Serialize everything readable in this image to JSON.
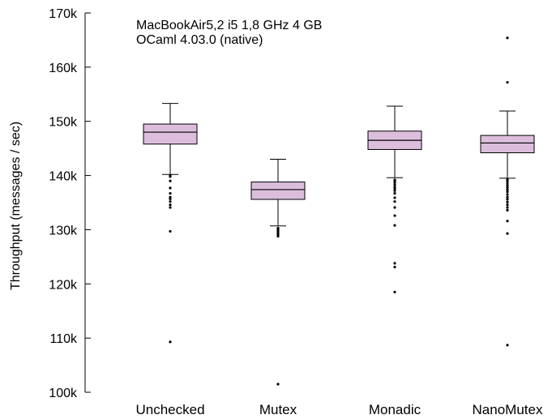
{
  "chart_data": {
    "type": "box",
    "ylabel": "Throughput (messages / sec)",
    "annotations": [
      "MacBookAir5,2 i5 1,8 GHz 4 GB",
      "OCaml 4.03.0 (native)"
    ],
    "ylim": [
      100000,
      170000
    ],
    "yticks": [
      {
        "value": 100000,
        "label": "100k"
      },
      {
        "value": 110000,
        "label": "110k"
      },
      {
        "value": 120000,
        "label": "120k"
      },
      {
        "value": 130000,
        "label": "130k"
      },
      {
        "value": 140000,
        "label": "140k"
      },
      {
        "value": 150000,
        "label": "150k"
      },
      {
        "value": 160000,
        "label": "160k"
      },
      {
        "value": 170000,
        "label": "170k"
      }
    ],
    "box_color": "#dcbedc",
    "categories": [
      "Unchecked",
      "Mutex",
      "Monadic",
      "NanoMutex"
    ],
    "boxes": [
      {
        "name": "Unchecked",
        "whisker_low": 140200,
        "q1": 145800,
        "median": 148000,
        "q3": 149500,
        "whisker_high": 153300,
        "outliers": [
          140000,
          139800,
          139000,
          137700,
          136700,
          136000,
          135700,
          135200,
          134600,
          134100,
          129700,
          109300
        ]
      },
      {
        "name": "Mutex",
        "whisker_low": 130700,
        "q1": 135600,
        "median": 137400,
        "q3": 138800,
        "whisker_high": 143000,
        "outliers": [
          130300,
          130000,
          129700,
          129400,
          129100,
          128800,
          101500
        ]
      },
      {
        "name": "Monadic",
        "whisker_low": 139600,
        "q1": 144800,
        "median": 146500,
        "q3": 148200,
        "whisker_high": 152800,
        "outliers": [
          139200,
          139000,
          138700,
          138300,
          137900,
          137600,
          137200,
          136700,
          135900,
          135200,
          134100,
          132600,
          130800,
          123800,
          123100,
          118500
        ]
      },
      {
        "name": "NanoMutex",
        "whisker_low": 139500,
        "q1": 144200,
        "median": 146000,
        "q3": 147400,
        "whisker_high": 151900,
        "outliers": [
          139300,
          139000,
          138600,
          138200,
          137800,
          137400,
          137000,
          136500,
          136000,
          135600,
          135100,
          134600,
          134100,
          133600,
          131600,
          129300,
          108700,
          157200,
          165400
        ]
      }
    ]
  }
}
